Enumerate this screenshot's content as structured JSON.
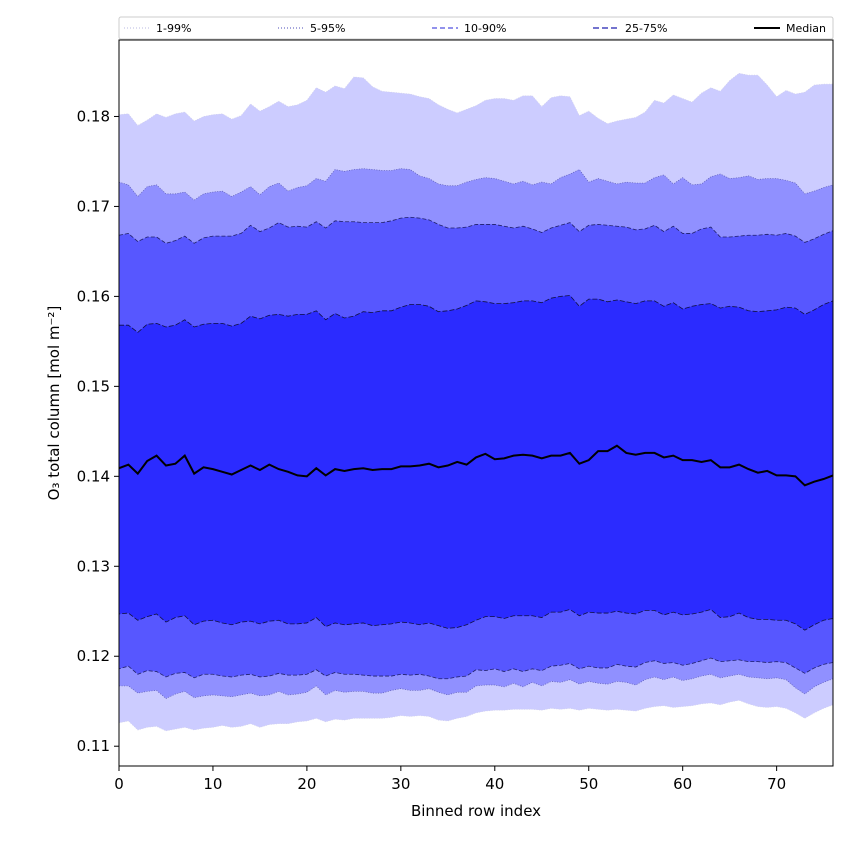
{
  "chart_data": {
    "type": "area",
    "xlabel": "Binned row index",
    "ylabel": "O₃ total column [mol m⁻²]",
    "xlim": [
      0,
      76
    ],
    "ylim": [
      0.1078,
      0.1885
    ],
    "xticks": [
      0,
      10,
      20,
      30,
      40,
      50,
      60,
      70
    ],
    "yticks": [
      0.11,
      0.12,
      0.13,
      0.14,
      0.15,
      0.16,
      0.17,
      0.18
    ],
    "xtick_labels": [
      "0",
      "10",
      "20",
      "30",
      "40",
      "50",
      "60",
      "70"
    ],
    "ytick_labels": [
      "0.11",
      "0.12",
      "0.13",
      "0.14",
      "0.15",
      "0.16",
      "0.17",
      "0.18"
    ],
    "legend_position": "top",
    "x": [
      0,
      1,
      2,
      3,
      4,
      5,
      6,
      7,
      8,
      9,
      10,
      11,
      12,
      13,
      14,
      15,
      16,
      17,
      18,
      19,
      20,
      21,
      22,
      23,
      24,
      25,
      26,
      27,
      28,
      29,
      30,
      31,
      32,
      33,
      34,
      35,
      36,
      37,
      38,
      39,
      40,
      41,
      42,
      43,
      44,
      45,
      46,
      47,
      48,
      49,
      50,
      51,
      52,
      53,
      54,
      55,
      56,
      57,
      58,
      59,
      60,
      61,
      62,
      63,
      64,
      65,
      66,
      67,
      68,
      69,
      70,
      71,
      72,
      73,
      74,
      75,
      76
    ],
    "bands": [
      {
        "name": "1-99%",
        "color": "#ccccff",
        "lower": [
          0.1126,
          0.1128,
          0.1118,
          0.1121,
          0.1122,
          0.1117,
          0.1119,
          0.1121,
          0.1118,
          0.112,
          0.1121,
          0.1123,
          0.1121,
          0.1122,
          0.1125,
          0.1121,
          0.1124,
          0.1125,
          0.1125,
          0.1127,
          0.1128,
          0.1131,
          0.1127,
          0.113,
          0.1129,
          0.1131,
          0.1131,
          0.1131,
          0.1131,
          0.1132,
          0.1134,
          0.1133,
          0.1134,
          0.1133,
          0.1129,
          0.1128,
          0.1131,
          0.1133,
          0.1137,
          0.1139,
          0.114,
          0.114,
          0.1141,
          0.1141,
          0.1141,
          0.114,
          0.1142,
          0.1141,
          0.1142,
          0.114,
          0.1142,
          0.1141,
          0.114,
          0.1141,
          0.114,
          0.1139,
          0.1142,
          0.1144,
          0.1145,
          0.1143,
          0.1144,
          0.1145,
          0.1147,
          0.1148,
          0.1146,
          0.1149,
          0.1151,
          0.1147,
          0.1144,
          0.1143,
          0.1144,
          0.1142,
          0.1137,
          0.1131,
          0.1137,
          0.1142,
          0.1146
        ],
        "upper": [
          0.1802,
          0.1803,
          0.179,
          0.1796,
          0.1803,
          0.1799,
          0.1803,
          0.1805,
          0.1795,
          0.18,
          0.1802,
          0.1803,
          0.1797,
          0.1801,
          0.1814,
          0.1806,
          0.1811,
          0.1817,
          0.1811,
          0.1813,
          0.1818,
          0.1832,
          0.1827,
          0.1834,
          0.1831,
          0.1844,
          0.1843,
          0.1833,
          0.1828,
          0.1827,
          0.1826,
          0.1825,
          0.1822,
          0.182,
          0.1813,
          0.1808,
          0.1804,
          0.1808,
          0.1812,
          0.1818,
          0.182,
          0.182,
          0.1818,
          0.1823,
          0.1823,
          0.1811,
          0.1821,
          0.1823,
          0.1822,
          0.1801,
          0.1806,
          0.1798,
          0.1792,
          0.1795,
          0.1797,
          0.1799,
          0.1805,
          0.1818,
          0.1815,
          0.1824,
          0.182,
          0.1816,
          0.1826,
          0.1832,
          0.1828,
          0.184,
          0.1848,
          0.1846,
          0.1846,
          0.1835,
          0.1822,
          0.1829,
          0.1825,
          0.1827,
          0.1835,
          0.1836,
          0.1836
        ]
      },
      {
        "name": "5-95%",
        "color": "#9090ff",
        "lower": [
          0.1167,
          0.1167,
          0.1159,
          0.1161,
          0.1162,
          0.1153,
          0.1158,
          0.1161,
          0.1154,
          0.1156,
          0.1157,
          0.1156,
          0.1155,
          0.1157,
          0.1159,
          0.1156,
          0.1157,
          0.1161,
          0.1157,
          0.1158,
          0.116,
          0.1167,
          0.1157,
          0.1162,
          0.116,
          0.1161,
          0.1161,
          0.1159,
          0.1159,
          0.1162,
          0.1164,
          0.1162,
          0.1162,
          0.1164,
          0.116,
          0.1157,
          0.116,
          0.116,
          0.1167,
          0.1168,
          0.1168,
          0.1166,
          0.117,
          0.1166,
          0.1171,
          0.1167,
          0.1172,
          0.1171,
          0.1174,
          0.1169,
          0.1172,
          0.117,
          0.1169,
          0.1172,
          0.1171,
          0.1168,
          0.1174,
          0.1177,
          0.1174,
          0.1177,
          0.1173,
          0.1175,
          0.1178,
          0.118,
          0.1176,
          0.1178,
          0.118,
          0.1177,
          0.1176,
          0.1175,
          0.1176,
          0.1174,
          0.1165,
          0.1158,
          0.1166,
          0.1171,
          0.1175
        ],
        "upper": [
          0.1727,
          0.1724,
          0.1711,
          0.1722,
          0.1724,
          0.1714,
          0.1714,
          0.1716,
          0.1707,
          0.1714,
          0.1716,
          0.1717,
          0.1711,
          0.1716,
          0.1722,
          0.1713,
          0.1722,
          0.1726,
          0.1717,
          0.1721,
          0.1723,
          0.1731,
          0.1728,
          0.1741,
          0.1739,
          0.1741,
          0.1742,
          0.1741,
          0.174,
          0.174,
          0.1742,
          0.1741,
          0.1734,
          0.1731,
          0.1725,
          0.1723,
          0.1723,
          0.1727,
          0.173,
          0.1732,
          0.1731,
          0.1728,
          0.1725,
          0.1728,
          0.1724,
          0.1727,
          0.1725,
          0.1732,
          0.1736,
          0.1741,
          0.1727,
          0.1731,
          0.1728,
          0.1725,
          0.1727,
          0.1726,
          0.1726,
          0.1732,
          0.1735,
          0.1725,
          0.1732,
          0.1724,
          0.1725,
          0.1733,
          0.1736,
          0.1731,
          0.1732,
          0.1734,
          0.173,
          0.1731,
          0.1731,
          0.1729,
          0.1726,
          0.1714,
          0.1717,
          0.1721,
          0.1724
        ]
      },
      {
        "name": "10-90%",
        "color": "#5757ff",
        "lower": [
          0.1186,
          0.1189,
          0.118,
          0.1184,
          0.1183,
          0.1177,
          0.1181,
          0.1182,
          0.1176,
          0.118,
          0.118,
          0.1178,
          0.1177,
          0.1179,
          0.118,
          0.1177,
          0.1178,
          0.1181,
          0.1179,
          0.1179,
          0.118,
          0.1185,
          0.1178,
          0.1182,
          0.118,
          0.118,
          0.1179,
          0.1178,
          0.1178,
          0.1178,
          0.118,
          0.1179,
          0.118,
          0.1178,
          0.1175,
          0.1175,
          0.1177,
          0.1178,
          0.1185,
          0.1184,
          0.1186,
          0.1183,
          0.1186,
          0.1183,
          0.1186,
          0.1184,
          0.1189,
          0.119,
          0.1192,
          0.1186,
          0.1189,
          0.1187,
          0.1187,
          0.1191,
          0.1189,
          0.1188,
          0.1193,
          0.1195,
          0.1192,
          0.1193,
          0.119,
          0.1192,
          0.1195,
          0.1198,
          0.1194,
          0.1195,
          0.1196,
          0.1194,
          0.1194,
          0.1193,
          0.1194,
          0.1193,
          0.1187,
          0.1181,
          0.1187,
          0.1191,
          0.1193
        ],
        "upper": [
          0.1668,
          0.167,
          0.1661,
          0.1666,
          0.1666,
          0.1659,
          0.1662,
          0.1667,
          0.1659,
          0.1665,
          0.1667,
          0.1667,
          0.1667,
          0.167,
          0.1679,
          0.1672,
          0.1676,
          0.1682,
          0.1677,
          0.1678,
          0.1677,
          0.1683,
          0.1676,
          0.1684,
          0.1683,
          0.1683,
          0.1682,
          0.1682,
          0.1682,
          0.1684,
          0.1687,
          0.1688,
          0.1687,
          0.1685,
          0.168,
          0.1676,
          0.1676,
          0.1677,
          0.168,
          0.168,
          0.168,
          0.1678,
          0.1676,
          0.1678,
          0.1675,
          0.1671,
          0.1676,
          0.1679,
          0.1682,
          0.1672,
          0.1679,
          0.168,
          0.1679,
          0.1678,
          0.1677,
          0.1674,
          0.1675,
          0.1679,
          0.1672,
          0.1678,
          0.167,
          0.167,
          0.1675,
          0.1677,
          0.1666,
          0.1666,
          0.1667,
          0.1668,
          0.1668,
          0.1669,
          0.1668,
          0.167,
          0.1667,
          0.166,
          0.1664,
          0.1669,
          0.1673
        ]
      },
      {
        "name": "25-75%",
        "color": "#2b2bff",
        "lower": [
          0.1247,
          0.1248,
          0.124,
          0.1244,
          0.1247,
          0.1238,
          0.1243,
          0.1245,
          0.1235,
          0.1239,
          0.124,
          0.1237,
          0.1235,
          0.1238,
          0.1239,
          0.1236,
          0.1239,
          0.124,
          0.1236,
          0.1236,
          0.1237,
          0.1243,
          0.1233,
          0.1237,
          0.1235,
          0.1236,
          0.1237,
          0.1234,
          0.1235,
          0.1236,
          0.1238,
          0.1237,
          0.1235,
          0.1237,
          0.1234,
          0.1231,
          0.1232,
          0.1235,
          0.124,
          0.1244,
          0.1244,
          0.1242,
          0.1245,
          0.1245,
          0.1245,
          0.1243,
          0.1249,
          0.1249,
          0.1252,
          0.1245,
          0.1249,
          0.1248,
          0.1248,
          0.125,
          0.1248,
          0.1247,
          0.1251,
          0.1251,
          0.1246,
          0.1249,
          0.1246,
          0.1247,
          0.1249,
          0.1252,
          0.1243,
          0.1244,
          0.1248,
          0.1243,
          0.1241,
          0.1241,
          0.124,
          0.124,
          0.1236,
          0.1229,
          0.1235,
          0.124,
          0.1242
        ],
        "upper": [
          0.1568,
          0.1568,
          0.156,
          0.1569,
          0.157,
          0.1566,
          0.1568,
          0.1574,
          0.1566,
          0.1569,
          0.157,
          0.157,
          0.1567,
          0.157,
          0.1578,
          0.1575,
          0.1579,
          0.158,
          0.1578,
          0.158,
          0.158,
          0.1584,
          0.1574,
          0.1581,
          0.1576,
          0.1578,
          0.1583,
          0.1582,
          0.1584,
          0.1584,
          0.1588,
          0.1591,
          0.1591,
          0.1589,
          0.1583,
          0.1584,
          0.1586,
          0.159,
          0.1595,
          0.1594,
          0.1592,
          0.1592,
          0.1593,
          0.1595,
          0.1595,
          0.1593,
          0.1598,
          0.16,
          0.1601,
          0.1589,
          0.1597,
          0.1597,
          0.1594,
          0.1596,
          0.1594,
          0.1592,
          0.1595,
          0.1595,
          0.1589,
          0.1593,
          0.1586,
          0.1589,
          0.1591,
          0.1592,
          0.1587,
          0.1589,
          0.1588,
          0.1584,
          0.1583,
          0.1584,
          0.1585,
          0.1588,
          0.1587,
          0.158,
          0.1585,
          0.1591,
          0.1595
        ]
      }
    ],
    "median": {
      "name": "Median",
      "color": "#000000",
      "values": [
        0.1409,
        0.1413,
        0.1403,
        0.1417,
        0.1423,
        0.1412,
        0.1414,
        0.1423,
        0.1403,
        0.141,
        0.1408,
        0.1405,
        0.1402,
        0.1407,
        0.1412,
        0.1407,
        0.1413,
        0.1408,
        0.1405,
        0.1401,
        0.14,
        0.1409,
        0.1401,
        0.1408,
        0.1406,
        0.1408,
        0.1409,
        0.1407,
        0.1408,
        0.1408,
        0.1411,
        0.1411,
        0.1412,
        0.1414,
        0.141,
        0.1412,
        0.1416,
        0.1413,
        0.1421,
        0.1425,
        0.1419,
        0.142,
        0.1423,
        0.1424,
        0.1423,
        0.142,
        0.1423,
        0.1423,
        0.1426,
        0.1414,
        0.1418,
        0.1428,
        0.1428,
        0.1434,
        0.1426,
        0.1424,
        0.1426,
        0.1426,
        0.1421,
        0.1423,
        0.1418,
        0.1418,
        0.1416,
        0.1418,
        0.141,
        0.141,
        0.1413,
        0.1408,
        0.1404,
        0.1406,
        0.1401,
        0.1401,
        0.14,
        0.139,
        0.1394,
        0.1397,
        0.1401
      ]
    },
    "legend": [
      {
        "label": "1-99%",
        "color": "#c8c8e8",
        "dash": "1,2"
      },
      {
        "label": "5-95%",
        "color": "#7070c8",
        "dash": "1,2"
      },
      {
        "label": "10-90%",
        "color": "#5050e0",
        "dash": "5,3"
      },
      {
        "label": "25-75%",
        "color": "#2020b0",
        "dash": "6,3"
      },
      {
        "label": "Median",
        "color": "#000000",
        "dash": ""
      }
    ]
  }
}
